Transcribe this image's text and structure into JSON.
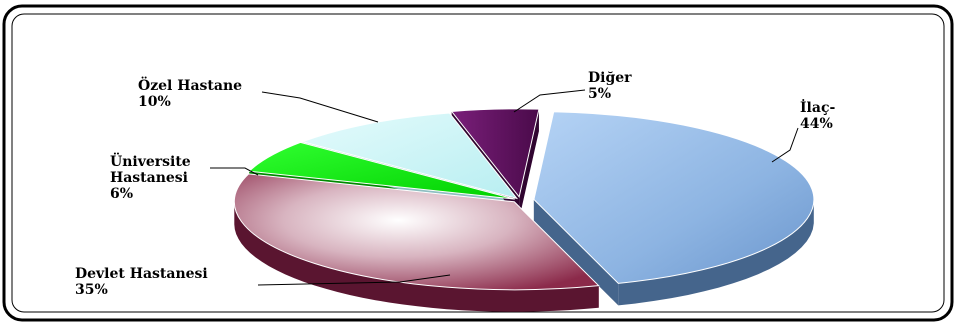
{
  "chart_data": {
    "type": "pie",
    "title": "",
    "legend": "none",
    "slices": [
      {
        "name": "İlaç",
        "label_lines": [
          "İlaç-",
          "44%"
        ],
        "value": 44,
        "color": "#8db4e2"
      },
      {
        "name": "Devlet Hastanesi",
        "label_lines": [
          "Devlet Hastanesi",
          "35%"
        ],
        "value": 35,
        "color": "#8b2a4a"
      },
      {
        "name": "Üniversite Hastanesi",
        "label_lines": [
          "Üniversite",
          "Hastanesi",
          "6%"
        ],
        "value": 6,
        "color": "#00ee00"
      },
      {
        "name": "Özel Hastane",
        "label_lines": [
          "Özel Hastane",
          "10%"
        ],
        "value": 10,
        "color": "#c8f4f6"
      },
      {
        "name": "Diğer",
        "label_lines": [
          "Diğer",
          "5%"
        ],
        "value": 5,
        "color": "#5a0f5a"
      }
    ]
  }
}
